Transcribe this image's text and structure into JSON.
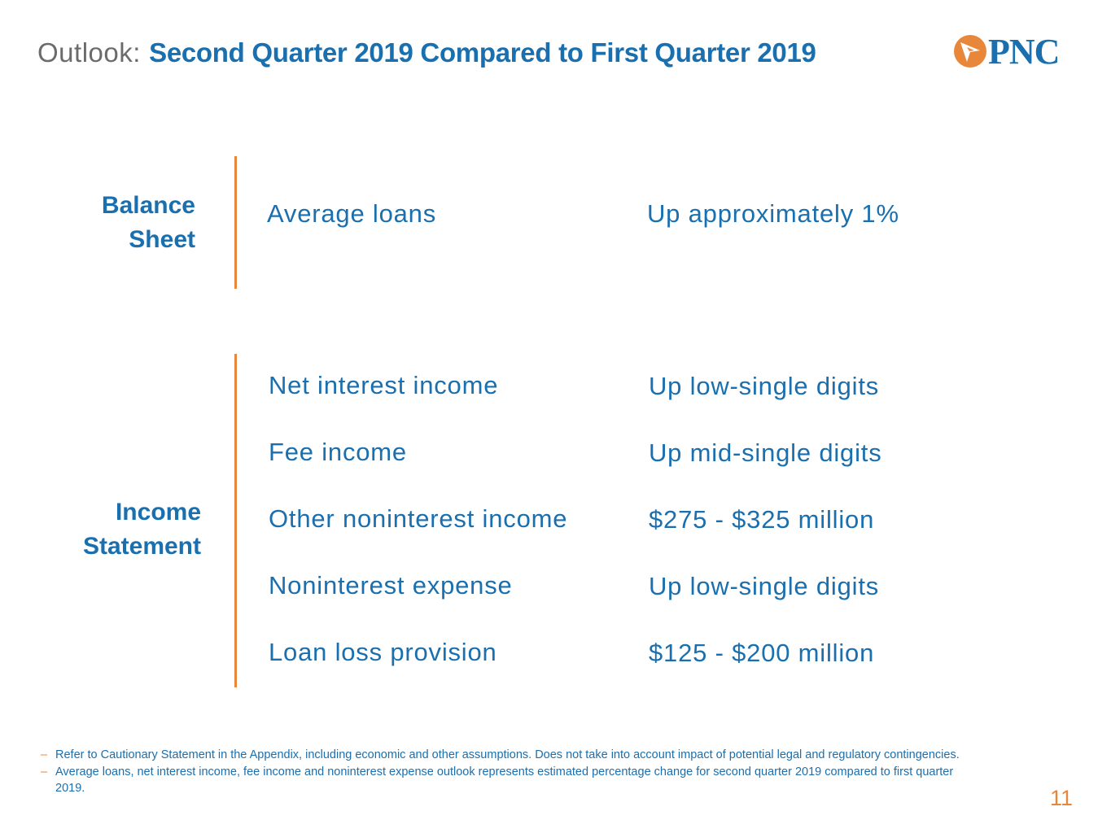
{
  "header": {
    "title_prefix": "Outlook:",
    "title_main": "Second Quarter 2019 Compared to First Quarter 2019",
    "logo_text": "PNC"
  },
  "balance_sheet": {
    "label_line1": "Balance",
    "label_line2": "Sheet",
    "items": [
      {
        "label": "Average loans",
        "value": "Up approximately 1%"
      }
    ]
  },
  "income_statement": {
    "label_line1": "Income",
    "label_line2": "Statement",
    "items": [
      {
        "label": "Net interest income",
        "value": "Up low-single digits"
      },
      {
        "label": "Fee income",
        "value": "Up mid-single digits"
      },
      {
        "label": "Other noninterest income",
        "value": "$275 - $325 million"
      },
      {
        "label": "Noninterest expense",
        "value": "Up low-single digits"
      },
      {
        "label": "Loan loss provision",
        "value": "$125 - $200 million"
      }
    ]
  },
  "footnotes": {
    "dash": "–",
    "items": [
      "Refer to Cautionary Statement in the Appendix, including economic and other assumptions. Does not take into account impact of potential legal and regulatory contingencies.",
      "Average loans, net interest income, fee income and noninterest expense outlook represents estimated percentage change for second quarter 2019 compared to first quarter 2019."
    ]
  },
  "page_number": "11",
  "colors": {
    "accent_blue": "#1a6faf",
    "accent_orange": "#e8863a",
    "gray": "#6b6b6b"
  }
}
